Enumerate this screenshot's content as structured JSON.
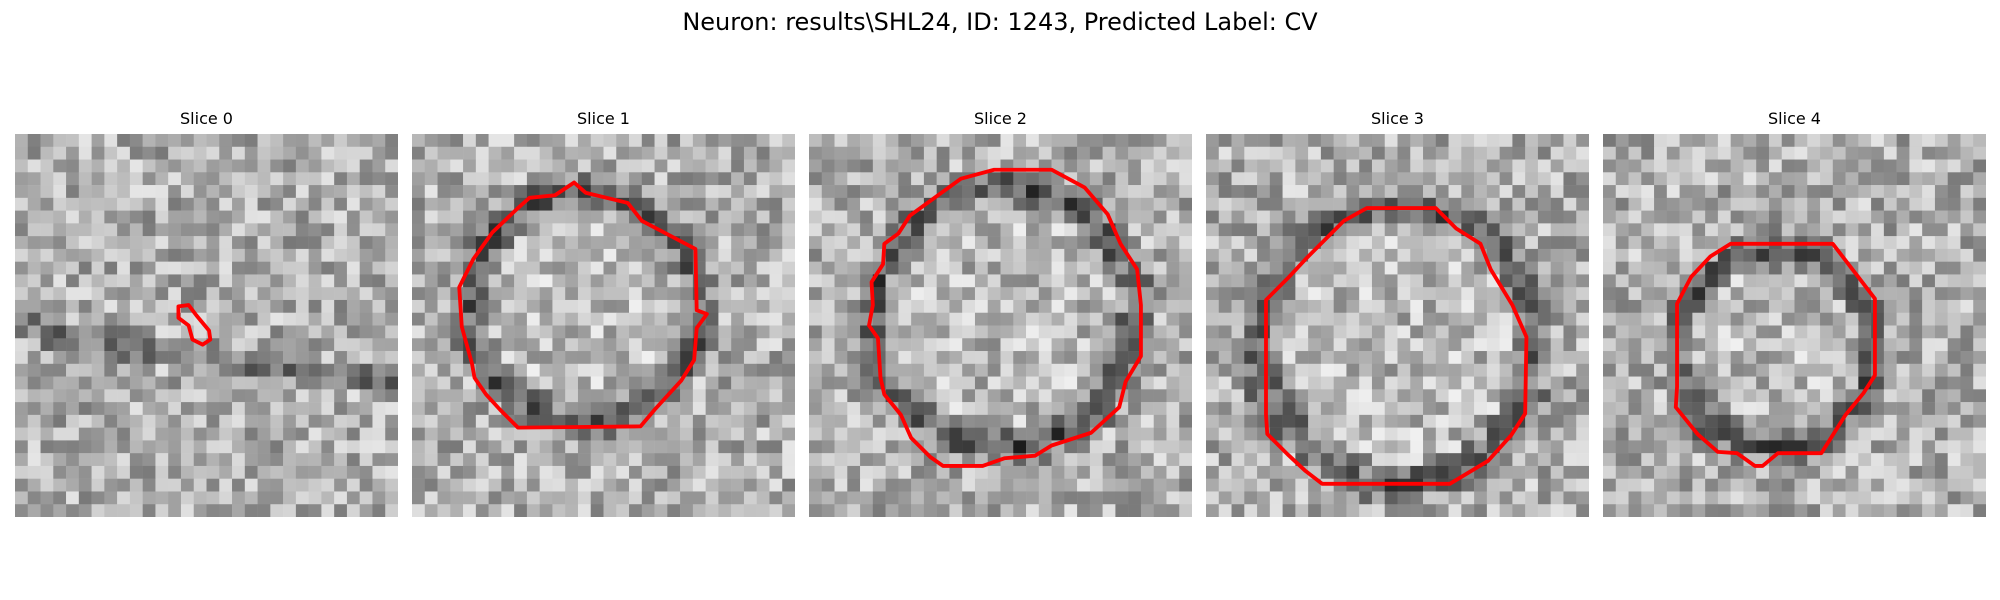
{
  "figure": {
    "title": "Neuron: results\\SHL24, ID: 1243, Predicted Label: CV"
  },
  "slices": [
    {
      "title": "Slice 0",
      "contour": "small-blob"
    },
    {
      "title": "Slice 1",
      "contour": "ring"
    },
    {
      "title": "Slice 2",
      "contour": "ring"
    },
    {
      "title": "Slice 3",
      "contour": "ring"
    },
    {
      "title": "Slice 4",
      "contour": "ring"
    }
  ],
  "colors": {
    "contour": "#ff0000",
    "background": "#ffffff"
  }
}
